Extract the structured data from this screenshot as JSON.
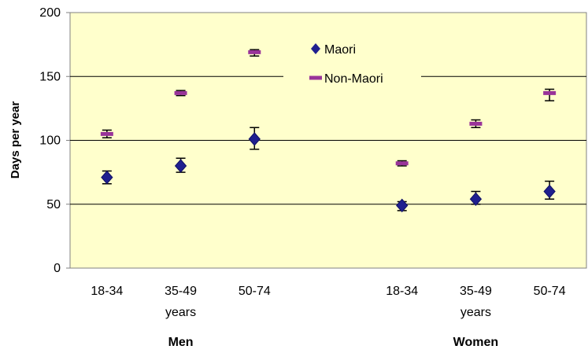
{
  "chart_data": {
    "type": "scatter",
    "title": "",
    "xlabel": "",
    "ylabel": "Days per year",
    "ylim": [
      0,
      200
    ],
    "yticks": [
      0,
      50,
      100,
      150,
      200
    ],
    "grid": true,
    "legend_position": "top-center",
    "plot_background": "#FFFFCC",
    "groups": [
      {
        "label": "Men",
        "categories": [
          "18-34",
          "35-49",
          "50-74"
        ]
      },
      {
        "label": "Women",
        "categories": [
          "18-34",
          "35-49",
          "50-74"
        ]
      }
    ],
    "category_sublabels": [
      "",
      "years",
      "",
      "",
      "years",
      ""
    ],
    "series": [
      {
        "name": "Maori",
        "color": "#1F1F8F",
        "marker": "diamond",
        "values": [
          71,
          80,
          101,
          49,
          54,
          60
        ],
        "lower": [
          66,
          75,
          93,
          45,
          50,
          54
        ],
        "upper": [
          76,
          86,
          110,
          52,
          60,
          68
        ]
      },
      {
        "name": "Non-Maori",
        "color": "#993399",
        "marker": "dash",
        "values": [
          105,
          137,
          169,
          82,
          113,
          137
        ],
        "lower": [
          102,
          135,
          166,
          80,
          110,
          131
        ],
        "upper": [
          108,
          139,
          171,
          84,
          116,
          140
        ]
      }
    ]
  }
}
